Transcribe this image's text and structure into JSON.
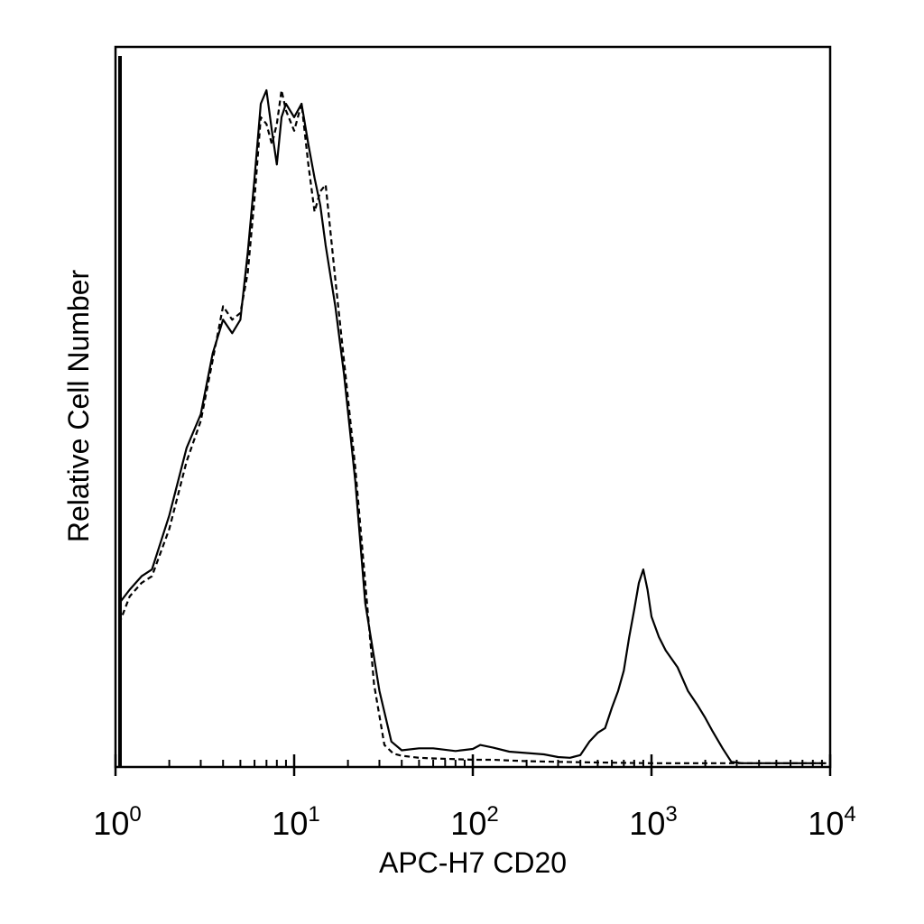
{
  "chart_data": {
    "type": "line",
    "title": "",
    "xlabel": "APC-H7 CD20",
    "ylabel": "Relative Cell Number",
    "x_scale": "log10",
    "xlim": [
      1,
      10000
    ],
    "ylim": [
      0,
      100
    ],
    "grid": false,
    "x_ticks": [
      {
        "base": "10",
        "exp": "0",
        "value": 1
      },
      {
        "base": "10",
        "exp": "1",
        "value": 10
      },
      {
        "base": "10",
        "exp": "2",
        "value": 100
      },
      {
        "base": "10",
        "exp": "3",
        "value": 1000
      },
      {
        "base": "10",
        "exp": "4",
        "value": 10000
      }
    ],
    "series": [
      {
        "style": "solid",
        "color": "#000000",
        "x": [
          1.05,
          1.2,
          1.4,
          1.6,
          2.0,
          2.5,
          3.0,
          3.5,
          4.0,
          4.5,
          5.0,
          5.5,
          6.0,
          6.5,
          7.0,
          7.5,
          8.0,
          8.5,
          9.0,
          10.0,
          11.0,
          12.0,
          13.0,
          14.0,
          15.0,
          17.0,
          19.0,
          22.0,
          25.0,
          30.0,
          35.0,
          40.0,
          50.0,
          60.0,
          80.0,
          100.0,
          110.0,
          130.0,
          160.0,
          200.0,
          250.0,
          300.0,
          350.0,
          400.0,
          450.0,
          500.0,
          550.0,
          600.0,
          650.0,
          700.0,
          750.0,
          800.0,
          850.0,
          900.0,
          950.0,
          1000.0,
          1100.0,
          1200.0,
          1400.0,
          1600.0,
          1800.0,
          2000.0,
          2200.0,
          2500.0,
          2800.0,
          3000.0,
          3200.0,
          5000.0,
          9500.0
        ],
        "y": [
          24,
          26,
          28,
          29,
          37,
          47,
          52,
          61,
          66,
          64,
          66,
          76,
          87,
          98,
          100,
          94,
          89,
          96,
          98,
          96,
          98,
          92,
          87,
          83,
          77,
          68,
          58,
          42,
          24,
          11,
          3.5,
          2.2,
          2.5,
          2.5,
          2.1,
          2.4,
          3.0,
          2.6,
          2.0,
          1.8,
          1.6,
          1.2,
          1.1,
          1.5,
          3.5,
          4.8,
          5.5,
          8.5,
          11.0,
          14.0,
          19.0,
          23.0,
          27.0,
          29.0,
          26.0,
          22.0,
          19.0,
          17.0,
          14.5,
          11.0,
          9.0,
          7.0,
          5.0,
          2.5,
          0.5,
          0.4,
          0.3,
          0.3,
          0.3
        ]
      },
      {
        "style": "dashed",
        "color": "#000000",
        "x": [
          1.05,
          1.2,
          1.4,
          1.6,
          2.0,
          2.5,
          3.0,
          3.5,
          4.0,
          4.5,
          5.0,
          5.5,
          6.0,
          6.5,
          7.0,
          7.5,
          8.0,
          8.5,
          9.0,
          10.0,
          11.0,
          12.0,
          13.0,
          14.0,
          15.0,
          17.0,
          19.0,
          22.0,
          25.0,
          28.0,
          32.0,
          36.0,
          40.0,
          50.0,
          60.0,
          80.0,
          100.0,
          130.0,
          160.0,
          200.0,
          300.0,
          500.0,
          1000.0,
          2000.0,
          5000.0,
          9500.0
        ],
        "y": [
          21,
          25,
          27,
          28,
          35,
          45,
          51,
          60,
          68,
          66,
          67,
          73,
          84,
          96,
          95,
          92,
          95,
          100,
          97,
          94,
          98,
          89,
          82,
          85,
          86,
          72,
          60,
          44,
          27,
          12,
          3.0,
          1.7,
          1.4,
          1.1,
          1.0,
          0.9,
          0.8,
          0.8,
          0.7,
          0.6,
          0.5,
          0.4,
          0.3,
          0.3,
          0.3,
          0.3
        ]
      }
    ]
  }
}
